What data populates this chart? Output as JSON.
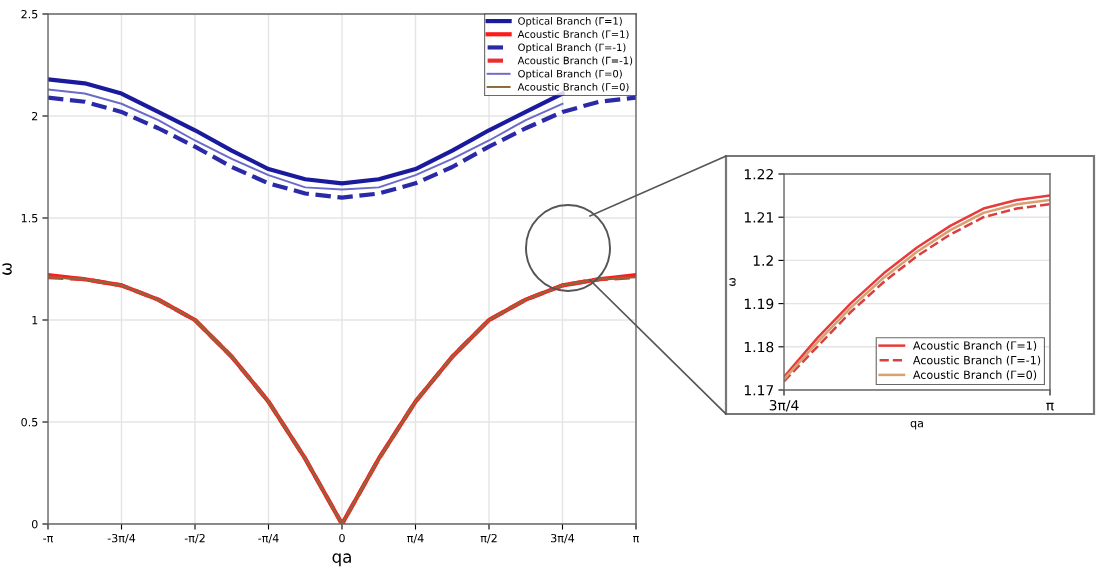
{
  "chart_data": [
    {
      "type": "line",
      "xlabel": "qa",
      "ylabel": "ω",
      "x": [
        -3.1416,
        -2.7489,
        -2.3562,
        -1.9635,
        -1.5708,
        -1.1781,
        -0.7854,
        -0.3927,
        0,
        0.3927,
        0.7854,
        1.1781,
        1.5708,
        1.9635,
        2.3562,
        2.7489,
        3.1416
      ],
      "xlim": [
        -3.1416,
        3.1416
      ],
      "xticks": [
        {
          "value": -3.1416,
          "label": "-π"
        },
        {
          "value": -2.3562,
          "label": "-3π/4"
        },
        {
          "value": -1.5708,
          "label": "-π/2"
        },
        {
          "value": -0.7854,
          "label": "-π/4"
        },
        0,
        {
          "value": 0.7854,
          "label": "π/4"
        },
        {
          "value": 1.5708,
          "label": "π/2"
        },
        {
          "value": 2.3562,
          "label": "3π/4"
        },
        {
          "value": 3.1416,
          "label": "π"
        }
      ],
      "ylim": [
        0,
        2.5
      ],
      "yticks": [
        0,
        0.5,
        1,
        1.5,
        2,
        2.5
      ],
      "grid": true,
      "legend": "top right",
      "series": [
        {
          "name": "Optical Branch (Γ=1)",
          "color": "#1a1a9c",
          "line_style": "solid",
          "values": [
            2.18,
            2.16,
            2.11,
            2.02,
            1.93,
            1.83,
            1.74,
            1.69,
            1.67,
            1.69,
            1.74,
            1.83,
            1.93,
            2.02,
            2.11,
            null,
            null
          ]
        },
        {
          "name": "Acoustic Branch (Γ=1)",
          "color": "#ff1a1a",
          "line_style": "solid",
          "values": [
            1.22,
            1.2,
            1.17,
            1.1,
            1.0,
            0.82,
            0.6,
            0.32,
            0,
            0.32,
            0.6,
            0.82,
            1.0,
            1.1,
            1.17,
            1.2,
            1.22
          ]
        },
        {
          "name": "Optical Branch (Γ=-1)",
          "color": "#2a2aa8",
          "line_style": "dashed",
          "values": [
            2.09,
            2.07,
            2.02,
            1.94,
            1.85,
            1.75,
            1.67,
            1.62,
            1.6,
            1.62,
            1.67,
            1.75,
            1.85,
            1.94,
            2.02,
            2.07,
            2.09
          ]
        },
        {
          "name": "Acoustic Branch (Γ=-1)",
          "color": "#e83030",
          "line_style": "dashed",
          "values": [
            1.21,
            1.2,
            1.17,
            1.1,
            1.0,
            0.82,
            0.6,
            0.32,
            0,
            0.32,
            0.6,
            0.82,
            1.0,
            1.1,
            1.17,
            1.2,
            1.21
          ]
        },
        {
          "name": "Optical Branch (Γ=0)",
          "color": "#6a6ac8",
          "line_style": "solid",
          "values": [
            2.13,
            2.11,
            2.06,
            1.98,
            1.88,
            1.79,
            1.71,
            1.65,
            1.64,
            1.65,
            1.71,
            1.79,
            1.88,
            1.98,
            2.06,
            null,
            null
          ]
        },
        {
          "name": "Acoustic Branch (Γ=0)",
          "color": "#8a6a3a",
          "line_style": "solid",
          "values": [
            1.21,
            1.2,
            1.17,
            1.1,
            1.0,
            0.82,
            0.6,
            0.32,
            0,
            0.32,
            0.6,
            0.82,
            1.0,
            1.1,
            1.17,
            1.2,
            1.21
          ]
        }
      ]
    },
    {
      "type": "line",
      "xlabel": "qa",
      "ylabel": "ω",
      "x": [
        2.3562,
        2.4544,
        2.5525,
        2.6507,
        2.7489,
        2.8471,
        2.9452,
        3.0434,
        3.1416
      ],
      "xlim": [
        2.3562,
        3.1416
      ],
      "xticks": [
        {
          "value": 2.3562,
          "label": "3π/4"
        },
        {
          "value": 3.1416,
          "label": "π"
        }
      ],
      "ylim": [
        1.17,
        1.22
      ],
      "yticks": [
        1.17,
        1.18,
        1.19,
        1.2,
        1.21,
        1.22
      ],
      "grid": true,
      "legend": "bottom right",
      "series": [
        {
          "name": "Acoustic Branch (Γ=1)",
          "color": "#e83a3a",
          "line_style": "solid",
          "values": [
            1.173,
            1.182,
            1.19,
            1.197,
            1.203,
            1.208,
            1.212,
            1.214,
            1.215
          ]
        },
        {
          "name": "Acoustic Branch (Γ=-1)",
          "color": "#d84040",
          "line_style": "dashed",
          "values": [
            1.172,
            1.18,
            1.188,
            1.195,
            1.201,
            1.206,
            1.21,
            1.212,
            1.213
          ]
        },
        {
          "name": "Acoustic Branch (Γ=0)",
          "color": "#d8a070",
          "line_style": "solid",
          "values": [
            1.1725,
            1.181,
            1.189,
            1.196,
            1.202,
            1.207,
            1.211,
            1.213,
            1.214
          ]
        }
      ]
    }
  ]
}
